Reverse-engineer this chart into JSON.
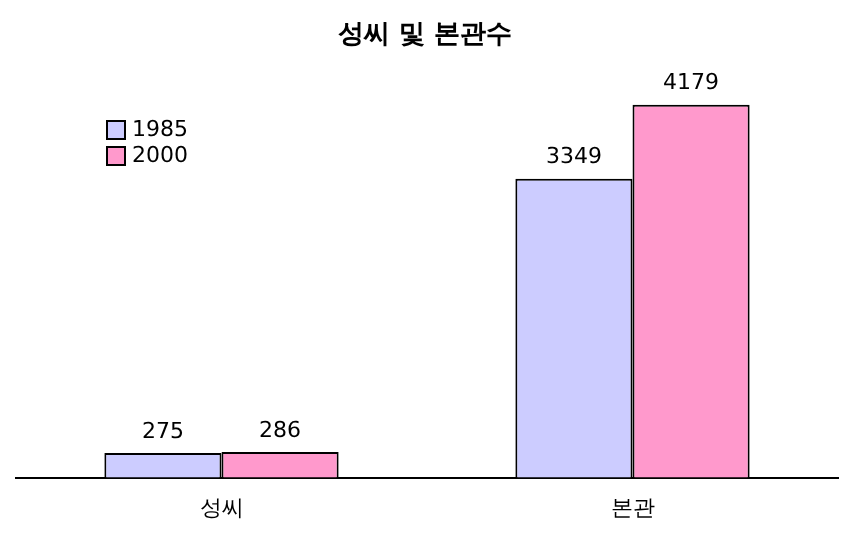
{
  "chart_data": {
    "type": "bar",
    "title": "성씨 및 본관수",
    "categories": [
      "성씨",
      "본관"
    ],
    "series": [
      {
        "name": "1985",
        "color": "#ccccff",
        "values": [
          275,
          3349
        ]
      },
      {
        "name": "2000",
        "color": "#ff99cc",
        "values": [
          286,
          4179
        ]
      }
    ],
    "data_labels": true,
    "legend": "top left",
    "grid": false
  }
}
